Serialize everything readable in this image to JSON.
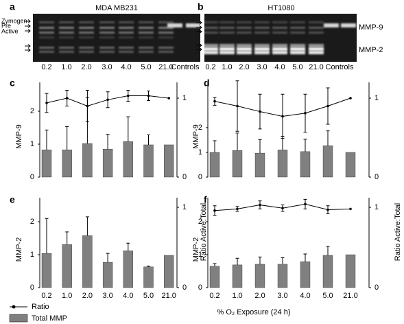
{
  "gels": [
    {
      "panel": "a",
      "title": "MDA MB231",
      "band_labels": [
        "Zymogen",
        "Pre",
        "Active"
      ]
    },
    {
      "panel": "b",
      "title": "HT1080",
      "band_labels": [
        "MMP-9",
        "MMP-2"
      ]
    }
  ],
  "categories": [
    "0.2",
    "1.0",
    "2.0",
    "3.0",
    "4.0",
    "5.0",
    "21.0"
  ],
  "control_lane": "Controls",
  "y2_label": "Ratio Active:Total",
  "x_label": "% O₂ Exposure (24 h)",
  "chart_data": [
    {
      "type": "bar_line",
      "panel": "c",
      "y_label": "MMP-9",
      "ylim": [
        0,
        2.875
      ],
      "yticks": [
        0,
        1,
        2
      ],
      "y2lim": [
        0,
        1.2
      ],
      "y2ticks": [
        0,
        1
      ],
      "series": [
        {
          "name": "Total MMP",
          "color": "#808080",
          "values": [
            0.83,
            0.83,
            1.02,
            0.85,
            1.08,
            0.98,
            0.98
          ],
          "errors": [
            0.6,
            0.7,
            1.4,
            0.45,
            0.75,
            0.3,
            null
          ]
        },
        {
          "name": "Ratio",
          "color": "#000000",
          "axis": "y2",
          "values": [
            0.94,
            1.0,
            0.9,
            0.98,
            1.03,
            1.03,
            1.0
          ],
          "errors": [
            0.12,
            0.1,
            0.2,
            0.1,
            0.07,
            0.06,
            null
          ]
        }
      ]
    },
    {
      "type": "bar_line",
      "panel": "d",
      "y_label": "MMP-9",
      "ylim": [
        0,
        3.83
      ],
      "yticks": [
        0,
        1,
        2
      ],
      "y2lim": [
        0,
        1.2
      ],
      "y2ticks": [
        0,
        1
      ],
      "series": [
        {
          "name": "Total MMP",
          "color": "#808080",
          "values": [
            1.0,
            1.08,
            0.97,
            1.1,
            1.03,
            1.27,
            1.0
          ],
          "errors": [
            0.47,
            0.7,
            0.55,
            0.55,
            0.5,
            0.6,
            null
          ]
        },
        {
          "name": "Ratio",
          "color": "#000000",
          "axis": "y2",
          "values": [
            0.96,
            0.9,
            0.83,
            0.77,
            0.81,
            0.9,
            1.0
          ],
          "errors": [
            0.05,
            0.32,
            0.22,
            0.28,
            0.24,
            0.23,
            null
          ]
        }
      ]
    },
    {
      "type": "bar_line",
      "panel": "e",
      "y_label": "MMP-2",
      "ylim": [
        0,
        2.73
      ],
      "yticks": [
        0,
        1,
        2
      ],
      "y2lim": [
        0,
        1.12
      ],
      "y2ticks": [
        0,
        1
      ],
      "series": [
        {
          "name": "Total MMP",
          "color": "#808080",
          "values": [
            1.04,
            1.31,
            1.58,
            0.77,
            1.12,
            0.63,
            0.98
          ],
          "errors": [
            1.06,
            0.38,
            0.57,
            0.27,
            0.23,
            0.02,
            null
          ]
        }
      ]
    },
    {
      "type": "bar_line",
      "panel": "f",
      "y_label": "MMP-2",
      "ylim": [
        0,
        2.73
      ],
      "yticks": [
        0,
        1,
        2
      ],
      "y2lim": [
        0,
        1.12
      ],
      "y2ticks": [
        0,
        1
      ],
      "series": [
        {
          "name": "Total MMP",
          "color": "#808080",
          "values": [
            0.65,
            0.69,
            0.71,
            0.71,
            0.79,
            0.98,
            1.0
          ],
          "errors": [
            0.08,
            0.2,
            0.22,
            0.2,
            0.23,
            0.27,
            null
          ]
        },
        {
          "name": "Ratio",
          "color": "#000000",
          "axis": "y2",
          "values": [
            0.96,
            0.98,
            1.03,
            0.99,
            1.04,
            0.97,
            0.98
          ],
          "errors": [
            0.06,
            0.03,
            0.05,
            0.04,
            0.06,
            0.05,
            null
          ]
        }
      ]
    }
  ]
}
